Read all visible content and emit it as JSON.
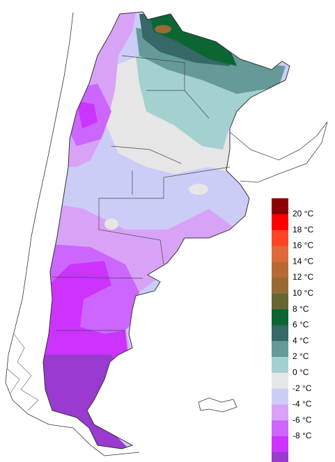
{
  "legend": {
    "labels": [
      "20 °C",
      "18 °C",
      "16 °C",
      "14 °C",
      "12 °C",
      "10 °C",
      "8 °C",
      "6 °C",
      "4 °C",
      "2 °C",
      "0 °C",
      "-2 °C",
      "-4 °C",
      "-6 °C",
      "-8 °C"
    ],
    "colors": [
      "#8b0000",
      "#ff0000",
      "#ff4426",
      "#e0683a",
      "#b86a36",
      "#976a34",
      "#666633",
      "#0b6634",
      "#356866",
      "#669a98",
      "#a3d1cf",
      "#e6e6e6",
      "#cccdf7",
      "#d8a3f7",
      "#cc66ff",
      "#cc33ff",
      "#9a3ad0"
    ]
  }
}
